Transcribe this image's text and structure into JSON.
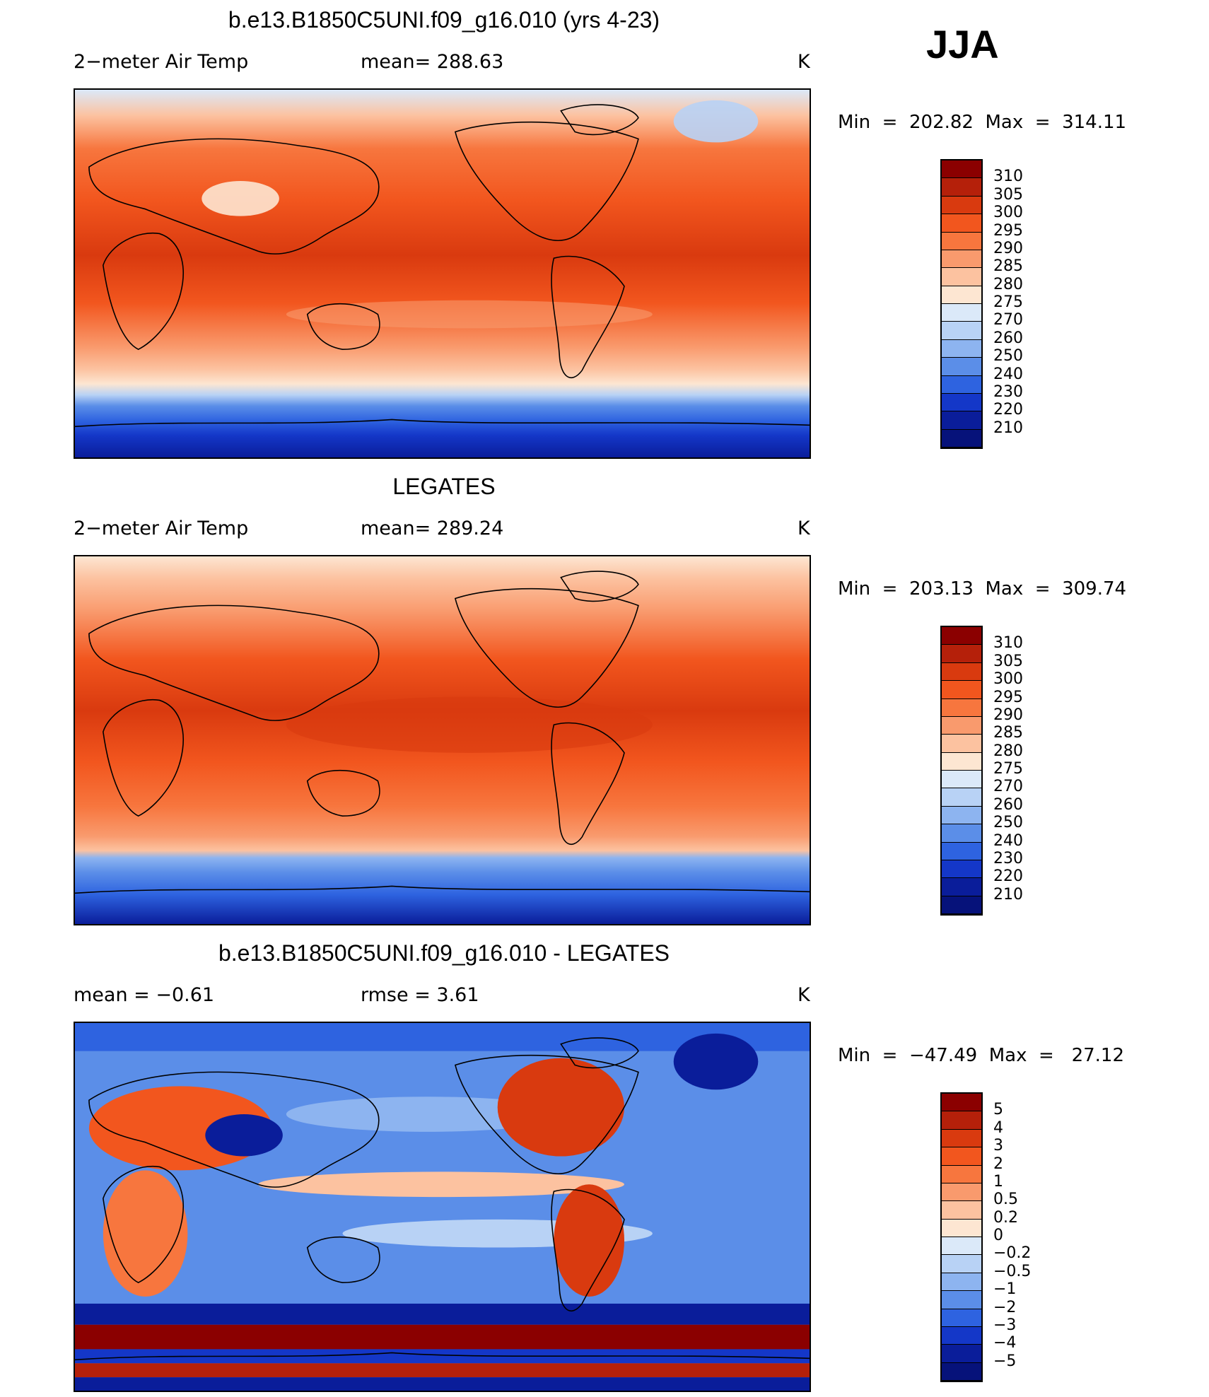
{
  "season": "JJA",
  "panels": [
    {
      "title": "b.e13.B1850C5UNI.f09_g16.010 (yrs 4-23)",
      "left_label": "2−meter Air Temp",
      "mid_label": "mean=  288.63",
      "unit": "K",
      "minmax": "Min  =  202.82  Max  =  314.11",
      "levels": [
        "310",
        "305",
        "300",
        "295",
        "290",
        "285",
        "280",
        "275",
        "270",
        "260",
        "250",
        "240",
        "230",
        "220",
        "210"
      ],
      "colors": [
        "#8b0000",
        "#b5200a",
        "#d93a0f",
        "#f2561e",
        "#f7763e",
        "#f99a6d",
        "#fcc2a0",
        "#fde6d2",
        "#dbe9f9",
        "#b8d2f5",
        "#8db4f0",
        "#5b8ee8",
        "#2e63e0",
        "#1437c8",
        "#0a1d9a",
        "#06127a"
      ]
    },
    {
      "title": "LEGATES",
      "left_label": "2−meter Air Temp",
      "mid_label": "mean=  289.24",
      "unit": "K",
      "minmax": "Min  =  203.13  Max  =  309.74",
      "levels": [
        "310",
        "305",
        "300",
        "295",
        "290",
        "285",
        "280",
        "275",
        "270",
        "260",
        "250",
        "240",
        "230",
        "220",
        "210"
      ],
      "colors": [
        "#8b0000",
        "#b5200a",
        "#d93a0f",
        "#f2561e",
        "#f7763e",
        "#f99a6d",
        "#fcc2a0",
        "#fde6d2",
        "#dbe9f9",
        "#b8d2f5",
        "#8db4f0",
        "#5b8ee8",
        "#2e63e0",
        "#1437c8",
        "#0a1d9a",
        "#06127a"
      ]
    },
    {
      "title": "b.e13.B1850C5UNI.f09_g16.010 - LEGATES",
      "left_label": "mean  =    −0.61",
      "mid_label": "rmse  =     3.61",
      "unit": "K",
      "minmax": "Min  =  −47.49  Max  =   27.12",
      "levels": [
        "5",
        "4",
        "3",
        "2",
        "1",
        "0.5",
        "0.2",
        "0",
        "−0.2",
        "−0.5",
        "−1",
        "−2",
        "−3",
        "−4",
        "−5"
      ],
      "colors": [
        "#8b0000",
        "#b5200a",
        "#d93a0f",
        "#f2561e",
        "#f7763e",
        "#f99a6d",
        "#fcc2a0",
        "#fde6d2",
        "#dbe9f9",
        "#b8d2f5",
        "#8db4f0",
        "#5b8ee8",
        "#2e63e0",
        "#1437c8",
        "#0a1d9a",
        "#06127a"
      ]
    }
  ]
}
